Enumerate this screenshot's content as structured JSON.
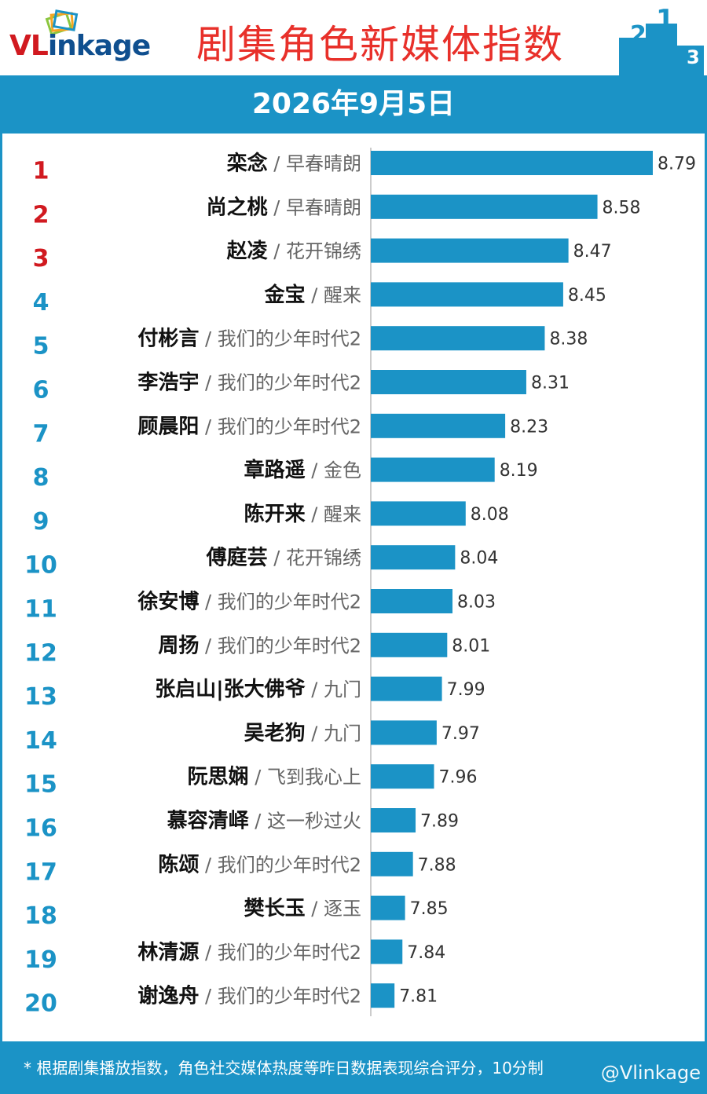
{
  "brand": {
    "logo_v": "VL",
    "logo_rest": "inkage",
    "title": "剧集角色新媒体指数",
    "podium_labels": [
      "2",
      "1",
      "3"
    ]
  },
  "date": "2026年9月5日",
  "colors": {
    "accent": "#1b93c6",
    "title_red": "#e8302a",
    "rank_top": "#d11a20",
    "rank_rest": "#1b93c6",
    "bar": "#1b93c6"
  },
  "footer": {
    "note": "* 根据剧集播放指数，角色社交媒体热度等昨日数据表现综合评分，10分制",
    "watermark": "@Vlinkage"
  },
  "chart_data": {
    "type": "bar",
    "orientation": "horizontal",
    "title": "剧集角色新媒体指数",
    "xlim": [
      7.72,
      8.79
    ],
    "grid": false,
    "rows": [
      {
        "rank": "1",
        "name": "栾念",
        "drama": "早春晴朗",
        "value": 8.79
      },
      {
        "rank": "2",
        "name": "尚之桃",
        "drama": "早春晴朗",
        "value": 8.58
      },
      {
        "rank": "3",
        "name": "赵凌",
        "drama": "花开锦绣",
        "value": 8.47
      },
      {
        "rank": "4",
        "name": "金宝",
        "drama": "醒来",
        "value": 8.45
      },
      {
        "rank": "5",
        "name": "付彬言",
        "drama": "我们的少年时代2",
        "value": 8.38
      },
      {
        "rank": "6",
        "name": "李浩宇",
        "drama": "我们的少年时代2",
        "value": 8.31
      },
      {
        "rank": "7",
        "name": "顾晨阳",
        "drama": "我们的少年时代2",
        "value": 8.23
      },
      {
        "rank": "8",
        "name": "章路遥",
        "drama": "金色",
        "value": 8.19
      },
      {
        "rank": "9",
        "name": "陈开来",
        "drama": "醒来",
        "value": 8.08
      },
      {
        "rank": "10",
        "name": "傅庭芸",
        "drama": "花开锦绣",
        "value": 8.04
      },
      {
        "rank": "11",
        "name": "徐安博",
        "drama": "我们的少年时代2",
        "value": 8.03
      },
      {
        "rank": "12",
        "name": "周扬",
        "drama": "我们的少年时代2",
        "value": 8.01
      },
      {
        "rank": "13",
        "name": "张启山|张大佛爷",
        "drama": "九门",
        "value": 7.99
      },
      {
        "rank": "14",
        "name": "吴老狗",
        "drama": "九门",
        "value": 7.97
      },
      {
        "rank": "15",
        "name": "阮思娴",
        "drama": "飞到我心上",
        "value": 7.96
      },
      {
        "rank": "16",
        "name": "慕容清峄",
        "drama": "这一秒过火",
        "value": 7.89
      },
      {
        "rank": "17",
        "name": "陈颂",
        "drama": "我们的少年时代2",
        "value": 7.88
      },
      {
        "rank": "18",
        "name": "樊长玉",
        "drama": "逐玉",
        "value": 7.85
      },
      {
        "rank": "19",
        "name": "林清源",
        "drama": "我们的少年时代2",
        "value": 7.84
      },
      {
        "rank": "20",
        "name": "谢逸舟",
        "drama": "我们的少年时代2",
        "value": 7.81
      }
    ]
  }
}
